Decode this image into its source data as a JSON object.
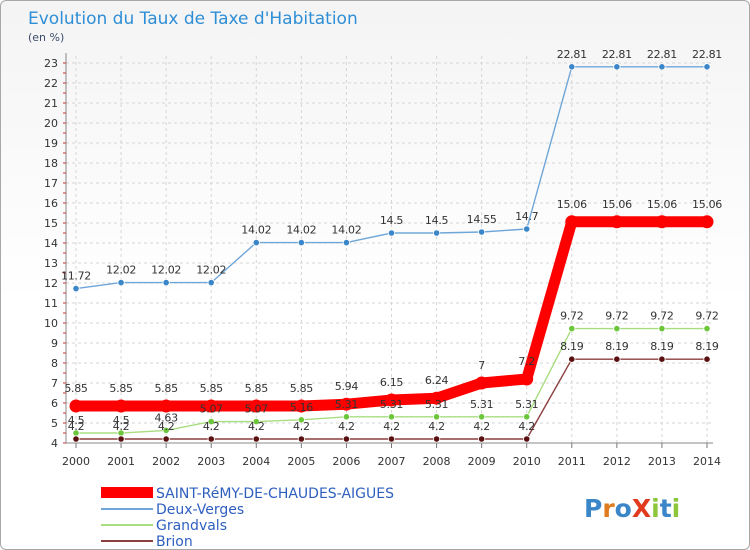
{
  "chart_data": {
    "type": "line",
    "title": "Evolution du Taux de Taxe d'Habitation",
    "ylabel": "(en %)",
    "xlabel": "",
    "ylim": [
      4,
      23
    ],
    "y_ticks": [
      4,
      5,
      6,
      7,
      8,
      9,
      10,
      11,
      12,
      13,
      14,
      15,
      16,
      17,
      18,
      19,
      20,
      21,
      22,
      23
    ],
    "grid": true,
    "legend_position": "bottom-left",
    "x": [
      "2000",
      "2001",
      "2002",
      "2003",
      "2004",
      "2005",
      "2006",
      "2007",
      "2008",
      "2009",
      "2010",
      "2011",
      "2012",
      "2013",
      "2014"
    ],
    "series": [
      {
        "name": "SAINT-RéMY-DE-CHAUDES-AIGUES",
        "color": "#ff0000",
        "bold": true,
        "values": [
          5.85,
          5.85,
          5.85,
          5.85,
          5.85,
          5.85,
          5.94,
          6.15,
          6.24,
          7,
          7.2,
          15.06,
          15.06,
          15.06,
          15.06
        ],
        "labels": [
          "5.85",
          "5.85",
          "5.85",
          "5.85",
          "5.85",
          "5.85",
          "5.94",
          "6.15",
          "6.24",
          "7",
          "7.2",
          "15.06",
          "15.06",
          "15.06",
          "15.06"
        ]
      },
      {
        "name": "Deux-Verges",
        "color": "#6fa6d8",
        "point_color": "#3a86c8",
        "values": [
          11.72,
          12.02,
          12.02,
          12.02,
          14.02,
          14.02,
          14.02,
          14.5,
          14.5,
          14.55,
          14.7,
          22.81,
          22.81,
          22.81,
          22.81
        ],
        "labels": [
          "11.72",
          "12.02",
          "12.02",
          "12.02",
          "14.02",
          "14.02",
          "14.02",
          "14.5",
          "14.5",
          "14.55",
          "14.7",
          "22.81",
          "22.81",
          "22.81",
          "22.81"
        ]
      },
      {
        "name": "Grandvals",
        "color": "#a8dd80",
        "point_color": "#6cc63a",
        "values": [
          4.5,
          4.5,
          4.63,
          5.07,
          5.07,
          5.16,
          5.31,
          5.31,
          5.31,
          5.31,
          5.31,
          9.72,
          9.72,
          9.72,
          9.72
        ],
        "labels": [
          "4.5",
          "4.5",
          "4.63",
          "5.07",
          "5.07",
          "5.16",
          "5.31",
          "5.31",
          "5.31",
          "5.31",
          "5.31",
          "9.72",
          "9.72",
          "9.72",
          "9.72"
        ]
      },
      {
        "name": "Brion",
        "color": "#8b3f3f",
        "point_color": "#5a1010",
        "values": [
          4.2,
          4.2,
          4.2,
          4.2,
          4.2,
          4.2,
          4.2,
          4.2,
          4.2,
          4.2,
          4.2,
          8.19,
          8.19,
          8.19,
          8.19
        ],
        "labels": [
          "4.2",
          "4.2",
          "4.2",
          "4.2",
          "4.2",
          "4.2",
          "4.2",
          "4.2",
          "4.2",
          "4.2",
          "4.2",
          "8.19",
          "8.19",
          "8.19",
          "8.19"
        ]
      }
    ]
  },
  "logo": {
    "text": "ProXiti",
    "colors": [
      "#3a86c8",
      "#e07a1f",
      "#3a86c8",
      "#e03a1f",
      "#8cc63a",
      "#3a86c8",
      "#8cc63a"
    ]
  }
}
